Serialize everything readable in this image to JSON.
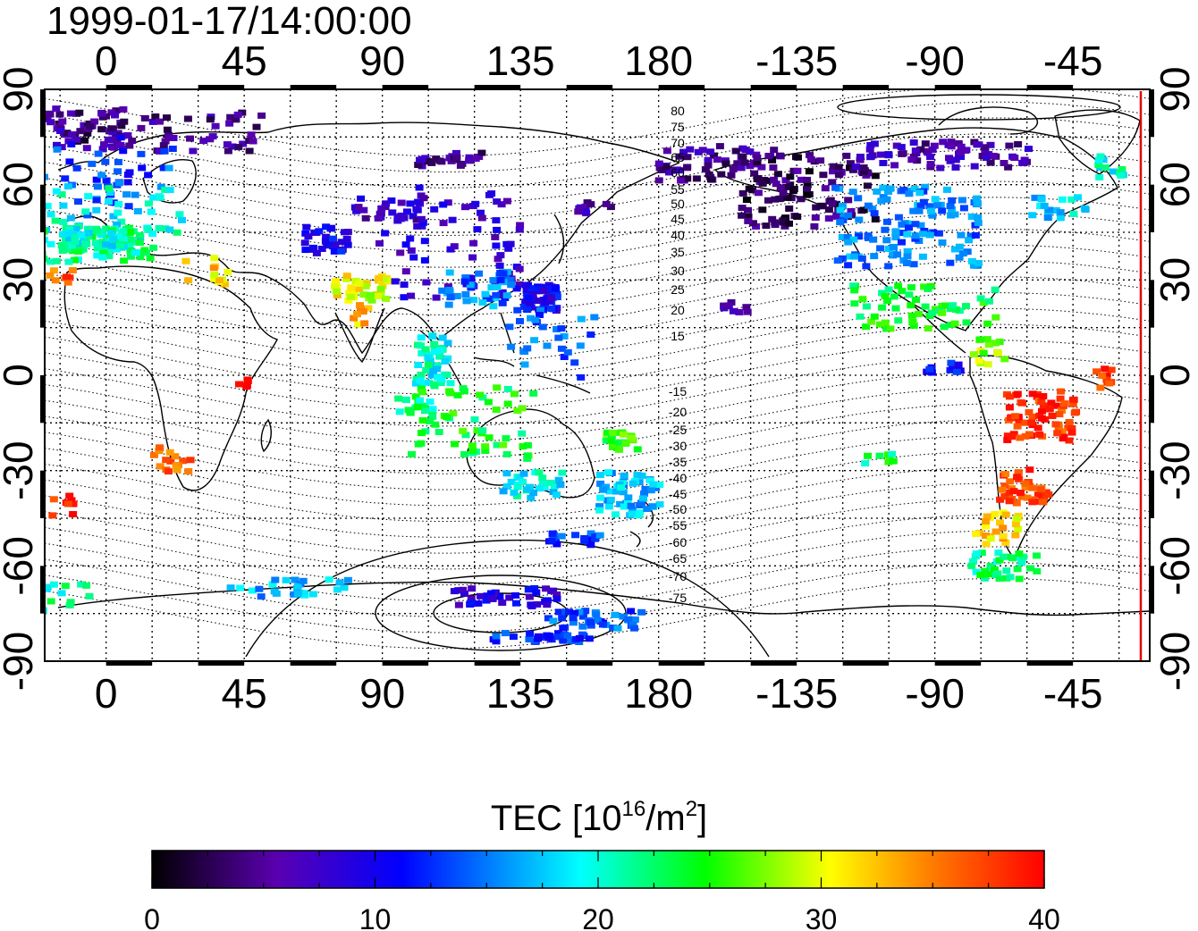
{
  "title": "1999-01-17/14:00:00",
  "map": {
    "top_axis_labels": [
      "0",
      "45",
      "90",
      "135",
      "180",
      "-135",
      "-90",
      "-45"
    ],
    "bottom_axis_labels": [
      "0",
      "45",
      "90",
      "135",
      "180",
      "-135",
      "-90",
      "-45"
    ],
    "left_axis_labels": [
      "90",
      "60",
      "30",
      "0",
      "-30",
      "-60",
      "-90"
    ],
    "right_axis_labels": [
      "90",
      "60",
      "30",
      "0",
      "-30",
      "-60",
      "-90"
    ],
    "lon_range": [
      -20,
      340
    ],
    "lat_range": [
      -90,
      90
    ],
    "grid": "dotted, 15 degree spacing",
    "magnetic_latitude_labels": [
      "80",
      "75",
      "70",
      "65",
      "60",
      "55",
      "50",
      "45",
      "40",
      "35",
      "30",
      "25",
      "20",
      "15",
      "-15",
      "-20",
      "-25",
      "-30",
      "-35",
      "-40",
      "-45",
      "-50",
      "-55",
      "-60",
      "-65",
      "-70",
      "-75"
    ],
    "terminator_color": "#e00000"
  },
  "colorbar": {
    "title_prefix": "TEC  [10",
    "title_exponent": "16",
    "title_unit": "/m",
    "title_unit_exponent": "2",
    "title_suffix": "]",
    "min": 0,
    "max": 40,
    "tick_labels": [
      "0",
      "10",
      "20",
      "30",
      "40"
    ],
    "colormap": [
      "#000000",
      "#5a00b0",
      "#0000ff",
      "#00ffff",
      "#00ff00",
      "#ffff00",
      "#ff8000",
      "#ff0000"
    ]
  }
}
